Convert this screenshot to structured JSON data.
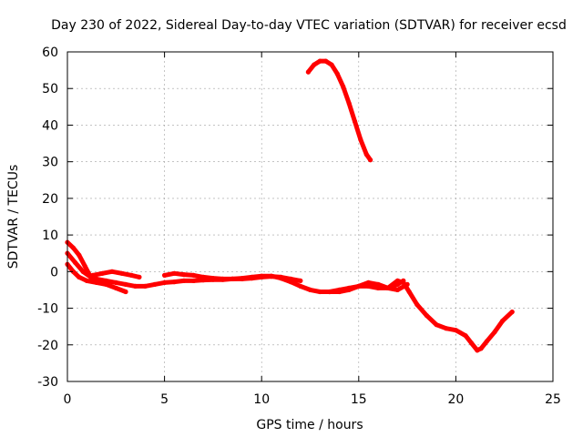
{
  "chart_data": {
    "type": "scatter",
    "title": "Day 230 of 2022, Sidereal Day-to-day VTEC variation (SDTVAR) for receiver ecsd",
    "xlabel": "GPS time / hours",
    "ylabel": "SDTVAR / TECUs",
    "xlim": [
      0,
      25
    ],
    "ylim": [
      -30,
      60
    ],
    "xticks": [
      0,
      5,
      10,
      15,
      20,
      25
    ],
    "yticks": [
      -30,
      -20,
      -10,
      0,
      10,
      20,
      30,
      40,
      50,
      60
    ],
    "grid": true,
    "series": [
      {
        "name": "satellite-arc-a",
        "color": "#ff0000",
        "x": [
          0,
          0.3,
          0.6,
          0.9,
          1.2,
          1.5,
          1.8,
          2.1
        ],
        "y": [
          8,
          6.5,
          4.5,
          1.5,
          -1.5,
          -2.5,
          -3,
          -3.5
        ]
      },
      {
        "name": "satellite-arc-b",
        "color": "#ff0000",
        "x": [
          0,
          0.3,
          0.6,
          1.0,
          1.5,
          2.0,
          2.5,
          3.0
        ],
        "y": [
          2,
          0,
          -1.5,
          -2.5,
          -3,
          -3.5,
          -4.5,
          -5.5
        ]
      },
      {
        "name": "satellite-arc-c",
        "color": "#ff0000",
        "x": [
          0,
          0.4,
          0.8,
          1.2,
          1.6
        ],
        "y": [
          5,
          2.5,
          0,
          -1.5,
          -2.5
        ]
      },
      {
        "name": "satellite-arc-d",
        "color": "#ff0000",
        "x": [
          1.3,
          1.8,
          2.3,
          2.8,
          3.3,
          3.7
        ],
        "y": [
          -1,
          -0.5,
          0,
          -0.5,
          -1,
          -1.5
        ]
      },
      {
        "name": "satellite-arc-e",
        "color": "#ff0000",
        "x": [
          1.5,
          2.0,
          2.5,
          3.0,
          3.5,
          4.0,
          4.5,
          5.0,
          5.5,
          6.0,
          6.5,
          7.0,
          7.5,
          8.0,
          8.5,
          9.0,
          9.5,
          10.0,
          10.5,
          11.0,
          11.5,
          12.0,
          12.5,
          13.0,
          13.5,
          14.0,
          14.5,
          15.0,
          15.5,
          16.0,
          16.5,
          17.0,
          17.3
        ],
        "y": [
          -2,
          -2.5,
          -3,
          -3.5,
          -4,
          -4,
          -3.5,
          -3,
          -2.8,
          -2.5,
          -2.5,
          -2.3,
          -2.2,
          -2.2,
          -2,
          -1.8,
          -1.5,
          -1.2,
          -1.2,
          -1.8,
          -2.8,
          -4,
          -5,
          -5.5,
          -5.5,
          -5,
          -4.5,
          -4,
          -4,
          -4.5,
          -4.5,
          -3.5,
          -2.5
        ]
      },
      {
        "name": "satellite-arc-f",
        "color": "#ff0000",
        "x": [
          5.0,
          5.5,
          6.0,
          6.5,
          7.0,
          7.5,
          8.0,
          8.5,
          9.0,
          9.5,
          10.0,
          10.5,
          11.0,
          11.5,
          12.0
        ],
        "y": [
          -1,
          -0.5,
          -0.8,
          -1,
          -1.5,
          -1.8,
          -2,
          -2,
          -2,
          -1.8,
          -1.5,
          -1.3,
          -1.5,
          -2,
          -2.5
        ]
      },
      {
        "name": "satellite-arc-g",
        "color": "#ff0000",
        "x": [
          13.5,
          14.0,
          14.5,
          15.0,
          15.5,
          16.0,
          16.5,
          17.0,
          17.5
        ],
        "y": [
          -5.5,
          -5.5,
          -5,
          -4,
          -3,
          -3.5,
          -4.5,
          -5,
          -3.5
        ]
      },
      {
        "name": "satellite-arc-h",
        "color": "#ff0000",
        "x": [
          16.5,
          17.0,
          17.3,
          17.6,
          18.0,
          18.5,
          19.0,
          19.5,
          20.0,
          20.5,
          20.8,
          21.1,
          21.3,
          21.6,
          22.0,
          22.4,
          22.9
        ],
        "y": [
          -4.5,
          -2.5,
          -3,
          -5.5,
          -9,
          -12,
          -14.5,
          -15.5,
          -16,
          -17.5,
          -19.5,
          -21.5,
          -21,
          -19,
          -16.5,
          -13.5,
          -11
        ]
      },
      {
        "name": "satellite-arc-i",
        "color": "#ff0000",
        "x": [
          12.4,
          12.7,
          13.0,
          13.3,
          13.6,
          13.9,
          14.2,
          14.5,
          14.8,
          15.1,
          15.4,
          15.6
        ],
        "y": [
          54.5,
          56.5,
          57.5,
          57.5,
          56.5,
          54,
          50.5,
          46,
          41,
          36,
          32,
          30.5
        ]
      }
    ]
  }
}
